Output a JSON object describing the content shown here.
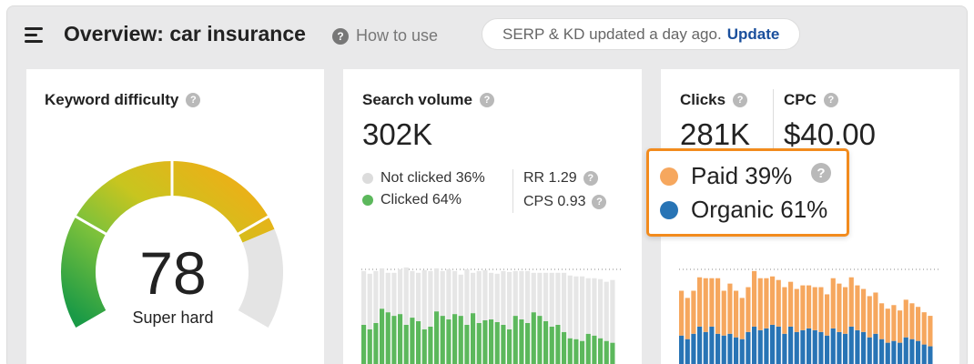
{
  "header": {
    "title": "Overview: car insurance",
    "how_to_label": "How to use",
    "update_text": "SERP & KD updated a day ago.",
    "update_link": "Update"
  },
  "keyword_difficulty": {
    "label": "Keyword difficulty",
    "value": "78",
    "rating": "Super hard",
    "gauge_fraction": 0.78
  },
  "search_volume": {
    "label": "Search volume",
    "value": "302K",
    "legend": [
      {
        "label": "Not clicked 36%",
        "color": "#dcdcdc"
      },
      {
        "label": "Clicked 64%",
        "color": "#5cb85c"
      }
    ],
    "metrics": [
      {
        "label": "RR 1.29"
      },
      {
        "label": "CPS 0.93"
      }
    ]
  },
  "clicks": {
    "label": "Clicks",
    "value": "281K",
    "cpc_label": "CPC",
    "cpc_value": "$40.00",
    "popup": [
      {
        "label": "Paid 39%",
        "color": "#f6a75e"
      },
      {
        "label": "Organic 61%",
        "color": "#2874b5"
      }
    ]
  },
  "colors": {
    "accent": "#f28b1d",
    "link": "#1a4f9c",
    "clicked": "#5cb85c",
    "not_clicked": "#e6e6e6",
    "paid": "#f6a75e",
    "organic": "#2874b5"
  },
  "chart_data": [
    {
      "type": "bar",
      "stacked": true,
      "series": [
        {
          "name": "Clicked",
          "values": [
            60,
            55,
            62,
            78,
            74,
            70,
            72,
            60,
            68,
            64,
            55,
            58,
            75,
            70,
            66,
            72,
            70,
            60,
            73,
            62,
            65,
            66,
            63,
            60,
            55,
            70,
            66,
            62,
            74,
            70,
            64,
            58,
            60,
            52,
            45,
            44,
            42,
            50,
            48,
            45,
            42,
            40
          ]
        },
        {
          "name": "Not clicked",
          "values": [
            60,
            62,
            58,
            45,
            44,
            48,
            50,
            64,
            52,
            54,
            66,
            62,
            48,
            50,
            56,
            48,
            46,
            62,
            45,
            58,
            56,
            52,
            54,
            60,
            64,
            50,
            54,
            58,
            44,
            48,
            54,
            60,
            58,
            66,
            70,
            70,
            72,
            62,
            64,
            66,
            66,
            70
          ]
        }
      ]
    },
    {
      "type": "bar",
      "stacked": true,
      "series": [
        {
          "name": "Organic",
          "values": [
            48,
            44,
            50,
            58,
            52,
            58,
            50,
            48,
            50,
            46,
            44,
            52,
            58,
            54,
            56,
            60,
            58,
            50,
            58,
            52,
            54,
            56,
            54,
            52,
            48,
            56,
            52,
            50,
            58,
            54,
            52,
            46,
            50,
            44,
            40,
            42,
            40,
            46,
            44,
            42,
            38,
            36
          ]
        },
        {
          "name": "Paid",
          "values": [
            50,
            46,
            48,
            55,
            60,
            54,
            62,
            50,
            56,
            52,
            46,
            50,
            62,
            58,
            56,
            54,
            52,
            52,
            50,
            48,
            50,
            48,
            48,
            50,
            46,
            56,
            54,
            52,
            55,
            50,
            48,
            46,
            46,
            40,
            38,
            40,
            36,
            42,
            40,
            38,
            36,
            34
          ]
        }
      ]
    }
  ]
}
